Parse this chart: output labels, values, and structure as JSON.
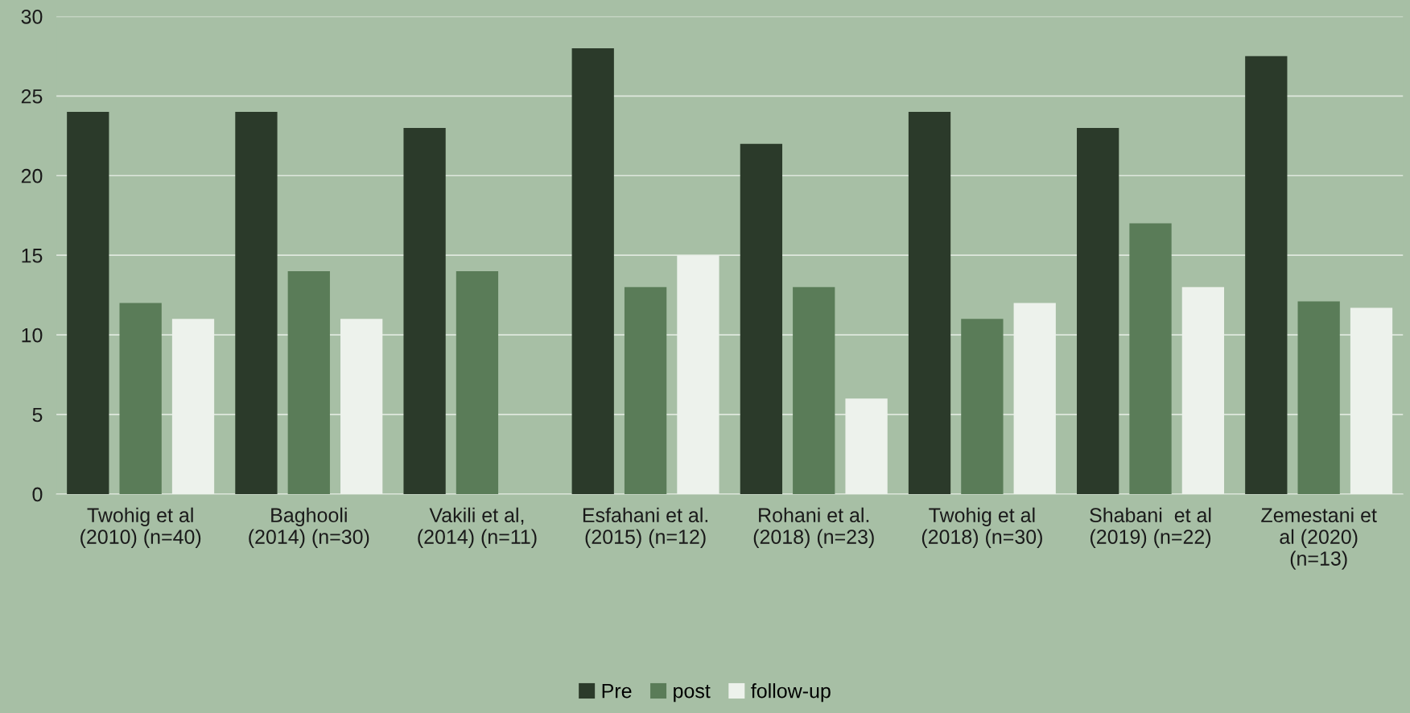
{
  "chart_data": {
    "type": "bar",
    "categories": [
      "Twohig et al\n(2010) (n=40)",
      "Baghooli\n(2014) (n=30)",
      "Vakili et al,\n(2014) (n=11)",
      "Esfahani et al.\n(2015) (n=12)",
      "Rohani et al.\n(2018) (n=23)",
      "Twohig et al\n(2018) (n=30)",
      "Shabani  et al\n(2019) (n=22)",
      "Zemestani et\nal (2020)\n(n=13)"
    ],
    "series": [
      {
        "name": "Pre",
        "color": "#2b3a2a",
        "values": [
          24,
          24,
          23,
          28,
          22,
          24,
          23,
          27.5
        ]
      },
      {
        "name": "post",
        "color": "#5a7c58",
        "values": [
          12,
          14,
          14,
          13,
          13,
          11,
          17,
          12.1
        ]
      },
      {
        "name": "follow-up",
        "color": "#edf2ec",
        "values": [
          11,
          11,
          null,
          15,
          6,
          12,
          13,
          11.7
        ]
      }
    ],
    "ylim": [
      0,
      30
    ],
    "yticks": [
      0,
      5,
      10,
      15,
      20,
      25,
      30
    ],
    "grid": "y",
    "legend": "bottom"
  }
}
